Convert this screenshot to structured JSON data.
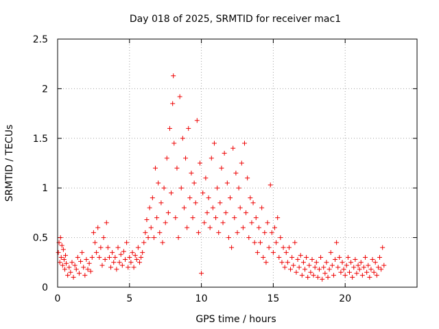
{
  "chart_data": {
    "type": "scatter",
    "title": "Day 018 of 2025, SRMTID for receiver mac1",
    "xlabel": "GPS time / hours",
    "ylabel": "SRMTID / TECUs",
    "xlim": [
      0,
      25
    ],
    "ylim": [
      0,
      2.5
    ],
    "xticks": [
      0,
      5,
      10,
      15,
      20
    ],
    "yticks": [
      0,
      0.5,
      1,
      1.5,
      2,
      2.5
    ],
    "xtick_labels": [
      "0",
      "5",
      "10",
      "15",
      "20"
    ],
    "ytick_labels": [
      "0",
      "0.5",
      "1",
      "1.5",
      "2",
      "2.5"
    ],
    "grid": true,
    "marker": "+",
    "series": [
      {
        "name": "mac1",
        "color": "#ee0000",
        "points": [
          [
            0.05,
            0.35
          ],
          [
            0.1,
            0.45
          ],
          [
            0.15,
            0.25
          ],
          [
            0.2,
            0.5
          ],
          [
            0.25,
            0.3
          ],
          [
            0.3,
            0.42
          ],
          [
            0.35,
            0.22
          ],
          [
            0.4,
            0.38
          ],
          [
            0.45,
            0.28
          ],
          [
            0.5,
            0.18
          ],
          [
            0.55,
            0.32
          ],
          [
            0.6,
            0.24
          ],
          [
            0.7,
            0.12
          ],
          [
            0.8,
            0.2
          ],
          [
            0.9,
            0.15
          ],
          [
            1.0,
            0.25
          ],
          [
            1.1,
            0.1
          ],
          [
            1.2,
            0.22
          ],
          [
            1.3,
            0.18
          ],
          [
            1.4,
            0.3
          ],
          [
            1.5,
            0.14
          ],
          [
            1.6,
            0.26
          ],
          [
            1.7,
            0.35
          ],
          [
            1.8,
            0.2
          ],
          [
            1.9,
            0.12
          ],
          [
            2.0,
            0.28
          ],
          [
            2.1,
            0.18
          ],
          [
            2.2,
            0.24
          ],
          [
            2.3,
            0.16
          ],
          [
            2.4,
            0.3
          ],
          [
            2.5,
            0.55
          ],
          [
            2.6,
            0.45
          ],
          [
            2.7,
            0.35
          ],
          [
            2.8,
            0.6
          ],
          [
            2.9,
            0.3
          ],
          [
            3.0,
            0.4
          ],
          [
            3.1,
            0.22
          ],
          [
            3.2,
            0.5
          ],
          [
            3.3,
            0.28
          ],
          [
            3.4,
            0.65
          ],
          [
            3.5,
            0.4
          ],
          [
            3.6,
            0.3
          ],
          [
            3.7,
            0.2
          ],
          [
            3.8,
            0.35
          ],
          [
            3.9,
            0.25
          ],
          [
            4.0,
            0.3
          ],
          [
            4.1,
            0.18
          ],
          [
            4.2,
            0.4
          ],
          [
            4.3,
            0.25
          ],
          [
            4.4,
            0.33
          ],
          [
            4.5,
            0.22
          ],
          [
            4.6,
            0.36
          ],
          [
            4.7,
            0.28
          ],
          [
            4.8,
            0.45
          ],
          [
            4.9,
            0.2
          ],
          [
            5.0,
            0.3
          ],
          [
            5.1,
            0.25
          ],
          [
            5.2,
            0.35
          ],
          [
            5.3,
            0.2
          ],
          [
            5.4,
            0.32
          ],
          [
            5.5,
            0.28
          ],
          [
            5.6,
            0.4
          ],
          [
            5.7,
            0.25
          ],
          [
            5.8,
            0.3
          ],
          [
            5.9,
            0.35
          ],
          [
            6.0,
            0.45
          ],
          [
            6.1,
            0.55
          ],
          [
            6.2,
            0.68
          ],
          [
            6.3,
            0.5
          ],
          [
            6.4,
            0.8
          ],
          [
            6.5,
            0.6
          ],
          [
            6.6,
            0.9
          ],
          [
            6.7,
            0.5
          ],
          [
            6.8,
            1.2
          ],
          [
            6.9,
            0.7
          ],
          [
            7.0,
            1.05
          ],
          [
            7.1,
            0.55
          ],
          [
            7.2,
            0.85
          ],
          [
            7.3,
            0.45
          ],
          [
            7.4,
            1.0
          ],
          [
            7.5,
            0.65
          ],
          [
            7.6,
            1.3
          ],
          [
            7.7,
            0.75
          ],
          [
            7.8,
            1.6
          ],
          [
            7.9,
            0.95
          ],
          [
            8.0,
            1.85
          ],
          [
            8.05,
            2.13
          ],
          [
            8.1,
            1.45
          ],
          [
            8.2,
            0.7
          ],
          [
            8.3,
            1.2
          ],
          [
            8.4,
            0.5
          ],
          [
            8.5,
            1.92
          ],
          [
            8.6,
            1.0
          ],
          [
            8.7,
            1.5
          ],
          [
            8.8,
            0.8
          ],
          [
            8.9,
            1.3
          ],
          [
            9.0,
            0.6
          ],
          [
            9.1,
            1.6
          ],
          [
            9.2,
            0.9
          ],
          [
            9.3,
            1.15
          ],
          [
            9.4,
            0.7
          ],
          [
            9.5,
            1.05
          ],
          [
            9.6,
            0.85
          ],
          [
            9.7,
            1.68
          ],
          [
            9.8,
            0.55
          ],
          [
            9.9,
            1.25
          ],
          [
            10.0,
            0.14
          ],
          [
            10.1,
            0.95
          ],
          [
            10.2,
            0.65
          ],
          [
            10.3,
            1.1
          ],
          [
            10.4,
            0.75
          ],
          [
            10.5,
            0.9
          ],
          [
            10.6,
            0.6
          ],
          [
            10.7,
            1.3
          ],
          [
            10.8,
            0.8
          ],
          [
            10.9,
            1.45
          ],
          [
            11.0,
            0.7
          ],
          [
            11.1,
            1.0
          ],
          [
            11.2,
            0.55
          ],
          [
            11.3,
            0.85
          ],
          [
            11.4,
            1.2
          ],
          [
            11.5,
            0.65
          ],
          [
            11.6,
            1.35
          ],
          [
            11.7,
            0.75
          ],
          [
            11.8,
            1.05
          ],
          [
            11.9,
            0.5
          ],
          [
            12.0,
            0.9
          ],
          [
            12.1,
            0.4
          ],
          [
            12.2,
            1.4
          ],
          [
            12.3,
            0.7
          ],
          [
            12.4,
            1.15
          ],
          [
            12.5,
            0.55
          ],
          [
            12.6,
            1.0
          ],
          [
            12.7,
            0.8
          ],
          [
            12.8,
            1.25
          ],
          [
            12.9,
            0.6
          ],
          [
            13.0,
            1.45
          ],
          [
            13.1,
            0.75
          ],
          [
            13.2,
            1.1
          ],
          [
            13.3,
            0.5
          ],
          [
            13.4,
            0.9
          ],
          [
            13.5,
            0.65
          ],
          [
            13.6,
            0.85
          ],
          [
            13.7,
            0.45
          ],
          [
            13.8,
            0.7
          ],
          [
            13.9,
            0.35
          ],
          [
            14.0,
            0.6
          ],
          [
            14.1,
            0.45
          ],
          [
            14.2,
            0.8
          ],
          [
            14.3,
            0.3
          ],
          [
            14.4,
            0.55
          ],
          [
            14.5,
            0.25
          ],
          [
            14.6,
            0.65
          ],
          [
            14.7,
            0.4
          ],
          [
            14.8,
            1.03
          ],
          [
            14.9,
            0.55
          ],
          [
            15.0,
            0.35
          ],
          [
            15.1,
            0.6
          ],
          [
            15.2,
            0.45
          ],
          [
            15.3,
            0.7
          ],
          [
            15.4,
            0.3
          ],
          [
            15.5,
            0.5
          ],
          [
            15.6,
            0.25
          ],
          [
            15.7,
            0.4
          ],
          [
            15.8,
            0.2
          ],
          [
            15.9,
            0.35
          ],
          [
            16.0,
            0.25
          ],
          [
            16.1,
            0.4
          ],
          [
            16.2,
            0.18
          ],
          [
            16.3,
            0.3
          ],
          [
            16.4,
            0.22
          ],
          [
            16.5,
            0.45
          ],
          [
            16.6,
            0.15
          ],
          [
            16.7,
            0.28
          ],
          [
            16.8,
            0.2
          ],
          [
            16.9,
            0.32
          ],
          [
            17.0,
            0.12
          ],
          [
            17.1,
            0.25
          ],
          [
            17.2,
            0.18
          ],
          [
            17.3,
            0.3
          ],
          [
            17.4,
            0.1
          ],
          [
            17.5,
            0.22
          ],
          [
            17.6,
            0.15
          ],
          [
            17.7,
            0.28
          ],
          [
            17.8,
            0.12
          ],
          [
            17.9,
            0.2
          ],
          [
            18.0,
            0.25
          ],
          [
            18.1,
            0.1
          ],
          [
            18.2,
            0.18
          ],
          [
            18.3,
            0.3
          ],
          [
            18.4,
            0.08
          ],
          [
            18.5,
            0.2
          ],
          [
            18.6,
            0.14
          ],
          [
            18.7,
            0.25
          ],
          [
            18.8,
            0.1
          ],
          [
            18.9,
            0.18
          ],
          [
            19.0,
            0.35
          ],
          [
            19.1,
            0.22
          ],
          [
            19.2,
            0.12
          ],
          [
            19.3,
            0.28
          ],
          [
            19.4,
            0.45
          ],
          [
            19.5,
            0.2
          ],
          [
            19.6,
            0.3
          ],
          [
            19.7,
            0.15
          ],
          [
            19.8,
            0.25
          ],
          [
            19.9,
            0.18
          ],
          [
            20.0,
            0.12
          ],
          [
            20.1,
            0.22
          ],
          [
            20.2,
            0.3
          ],
          [
            20.3,
            0.15
          ],
          [
            20.4,
            0.25
          ],
          [
            20.5,
            0.1
          ],
          [
            20.6,
            0.2
          ],
          [
            20.7,
            0.28
          ],
          [
            20.8,
            0.14
          ],
          [
            20.9,
            0.22
          ],
          [
            21.0,
            0.18
          ],
          [
            21.1,
            0.25
          ],
          [
            21.2,
            0.12
          ],
          [
            21.3,
            0.2
          ],
          [
            21.4,
            0.3
          ],
          [
            21.5,
            0.15
          ],
          [
            21.6,
            0.22
          ],
          [
            21.7,
            0.1
          ],
          [
            21.8,
            0.18
          ],
          [
            21.9,
            0.28
          ],
          [
            22.0,
            0.15
          ],
          [
            22.1,
            0.25
          ],
          [
            22.2,
            0.12
          ],
          [
            22.3,
            0.2
          ],
          [
            22.4,
            0.3
          ],
          [
            22.5,
            0.18
          ],
          [
            22.6,
            0.4
          ],
          [
            22.7,
            0.22
          ]
        ]
      }
    ]
  }
}
